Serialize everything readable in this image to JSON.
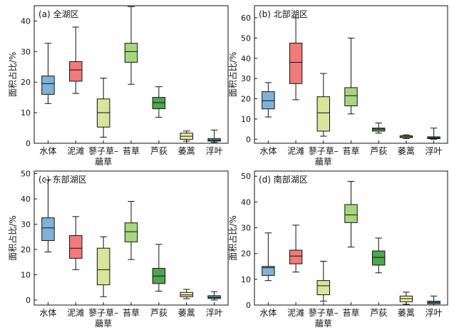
{
  "colors": {
    "axis": "#111111",
    "categories": [
      "#7fb3d6",
      "#f17b7a",
      "#d9e59b",
      "#a7d67e",
      "#4fa64f",
      "#f1ef9f",
      "#4b9bb8"
    ]
  },
  "chart_data": [
    {
      "type": "box",
      "panel_label": "(a) 全湖区",
      "ylabel": "面积占比/%",
      "ylim": [
        0,
        45
      ],
      "yticks": [
        0,
        10,
        20,
        30,
        40
      ],
      "categories": [
        "水体",
        "泥滩",
        "蓼子草–",
        "苔草",
        "芦荻",
        "萎蒿",
        "浮叶"
      ],
      "category_subline": [
        "",
        "",
        "虉草",
        "",
        "",
        "",
        ""
      ],
      "boxes": [
        {
          "min": 13,
          "q1": 16,
          "median": 19.5,
          "q3": 22,
          "max": 32.7
        },
        {
          "min": 16.3,
          "q1": 20.3,
          "median": 24,
          "q3": 26.7,
          "max": 38
        },
        {
          "min": 2,
          "q1": 5.3,
          "median": 10,
          "q3": 14.5,
          "max": 21.3
        },
        {
          "min": 19.3,
          "q1": 26.5,
          "median": 30,
          "q3": 32.7,
          "max": 44.7
        },
        {
          "min": 8.5,
          "q1": 11.3,
          "median": 13.3,
          "q3": 15,
          "max": 18.5
        },
        {
          "min": 0.7,
          "q1": 1.3,
          "median": 2.3,
          "q3": 3.3,
          "max": 4
        },
        {
          "min": 0.3,
          "q1": 0.7,
          "median": 1,
          "q3": 1.5,
          "max": 4.3
        }
      ]
    },
    {
      "type": "box",
      "panel_label": "(b) 北部湖区",
      "ylabel": "面积占比/%",
      "ylim": [
        -2,
        66
      ],
      "yticks": [
        0,
        10,
        20,
        30,
        40,
        50,
        60
      ],
      "categories": [
        "水体",
        "泥滩",
        "蓼子草–",
        "苔草",
        "芦荻",
        "萎蒿",
        "浮叶"
      ],
      "category_subline": [
        "",
        "",
        "虉草",
        "",
        "",
        "",
        ""
      ],
      "boxes": [
        {
          "min": 11,
          "q1": 15,
          "median": 19,
          "q3": 23.5,
          "max": 28
        },
        {
          "min": 19.5,
          "q1": 27.5,
          "median": 38,
          "q3": 47.5,
          "max": 60
        },
        {
          "min": 1.5,
          "q1": 4,
          "median": 13,
          "q3": 21,
          "max": 32.5
        },
        {
          "min": 12.5,
          "q1": 16.5,
          "median": 21.5,
          "q3": 25.5,
          "max": 50
        },
        {
          "min": 3,
          "q1": 4,
          "median": 5,
          "q3": 5.5,
          "max": 8
        },
        {
          "min": 0.3,
          "q1": 0.8,
          "median": 1.2,
          "q3": 1.7,
          "max": 2.2
        },
        {
          "min": 0,
          "q1": 0.3,
          "median": 0.7,
          "q3": 1.2,
          "max": 5.5
        }
      ]
    },
    {
      "type": "box",
      "panel_label": "(c) 东部湖区",
      "ylabel": "面积占比/%",
      "ylim": [
        -2,
        51
      ],
      "yticks": [
        0,
        10,
        20,
        30,
        40,
        50
      ],
      "categories": [
        "水体",
        "泥滩",
        "蓼子草–",
        "苔草",
        "芦荻",
        "萎蒿",
        "浮叶"
      ],
      "category_subline": [
        "",
        "",
        "虉草",
        "",
        "",
        "",
        ""
      ],
      "boxes": [
        {
          "min": 19,
          "q1": 23.5,
          "median": 28.5,
          "q3": 32.5,
          "max": 47.5
        },
        {
          "min": 12,
          "q1": 16.5,
          "median": 20.5,
          "q3": 25.5,
          "max": 33
        },
        {
          "min": 1.3,
          "q1": 6,
          "median": 12,
          "q3": 20.5,
          "max": 25
        },
        {
          "min": 16,
          "q1": 23,
          "median": 27,
          "q3": 30.5,
          "max": 39
        },
        {
          "min": 3.5,
          "q1": 6.5,
          "median": 9.5,
          "q3": 12.5,
          "max": 22
        },
        {
          "min": 0.5,
          "q1": 1.3,
          "median": 2,
          "q3": 3,
          "max": 4.2
        },
        {
          "min": 0,
          "q1": 0.6,
          "median": 1,
          "q3": 1.7,
          "max": 3.3
        }
      ]
    },
    {
      "type": "box",
      "panel_label": "(d) 南部湖区",
      "ylabel": "面积占比/%",
      "ylim": [
        0,
        52
      ],
      "yticks": [
        0,
        10,
        20,
        30,
        40,
        50
      ],
      "categories": [
        "水体",
        "泥滩",
        "蓼子草–",
        "苔草",
        "芦荻",
        "萎蒿",
        "浮叶"
      ],
      "category_subline": [
        "",
        "",
        "虉草",
        "",
        "",
        "",
        ""
      ],
      "boxes": [
        {
          "min": 9.5,
          "q1": 11.5,
          "median": 14.5,
          "q3": 15,
          "max": 28
        },
        {
          "min": 12.8,
          "q1": 16,
          "median": 19,
          "q3": 21.3,
          "max": 31
        },
        {
          "min": 1.5,
          "q1": 4,
          "median": 7.5,
          "q3": 9.5,
          "max": 17
        },
        {
          "min": 22.5,
          "q1": 32,
          "median": 35,
          "q3": 39,
          "max": 48
        },
        {
          "min": 12.5,
          "q1": 15.5,
          "median": 18.5,
          "q3": 21,
          "max": 26
        },
        {
          "min": 0.3,
          "q1": 1.3,
          "median": 2.5,
          "q3": 3.5,
          "max": 5
        },
        {
          "min": 0,
          "q1": 0.5,
          "median": 1,
          "q3": 1.5,
          "max": 3.5
        }
      ]
    }
  ]
}
